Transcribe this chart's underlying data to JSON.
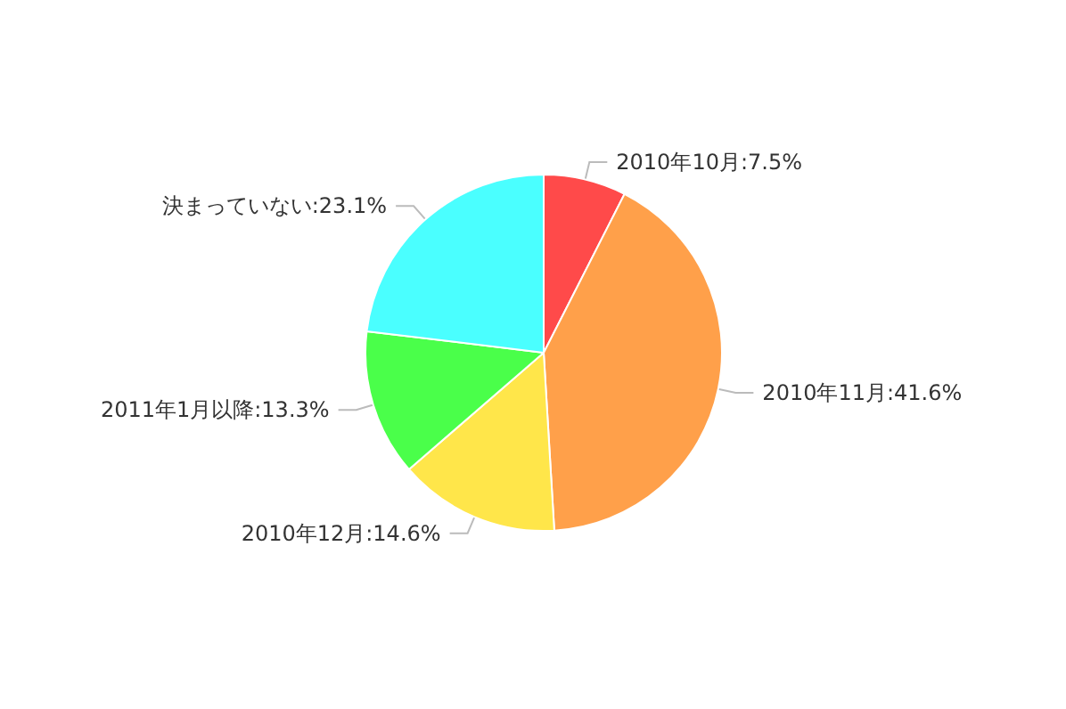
{
  "chart_data": {
    "type": "pie",
    "categories": [
      "2010年10月",
      "2010年11月",
      "2010年12月",
      "2011年1月以降",
      "決まっていない"
    ],
    "values": [
      7.5,
      41.6,
      14.6,
      13.3,
      23.1
    ],
    "value_labels": [
      "7.5%",
      "41.6%",
      "14.6%",
      "13.3%",
      "23.1%"
    ],
    "colors": [
      "#ff4a4a",
      "#ffa04a",
      "#ffe64a",
      "#4aff4a",
      "#4affff"
    ],
    "legend": false
  }
}
